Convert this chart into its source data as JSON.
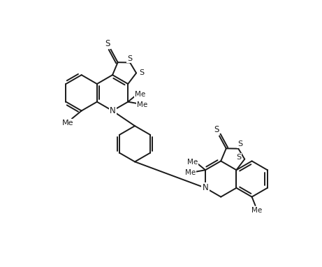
{
  "bg_color": "#ffffff",
  "bond_color": "#1a1a1a",
  "atom_color": "#1a1a1a",
  "lw": 1.4,
  "fs": 8.5,
  "fig_width": 4.61,
  "fig_height": 3.82,
  "xlim": [
    0,
    9.22
  ],
  "ylim": [
    0,
    7.64
  ]
}
